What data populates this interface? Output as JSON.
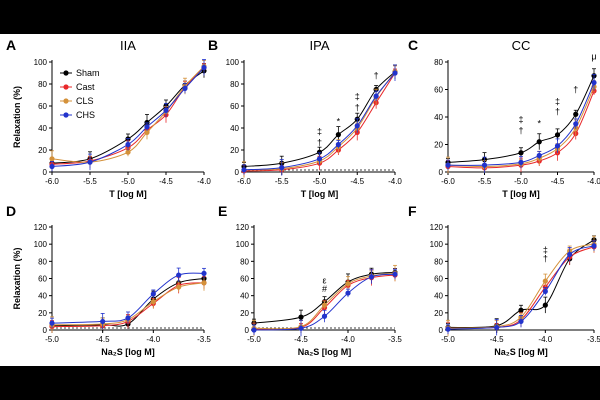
{
  "figure": {
    "y_axis_label": "Relaxation (%)",
    "legend": [
      "Sham",
      "Cast",
      "CLS",
      "CHS"
    ]
  },
  "chart_data": [
    {
      "type": "line",
      "panel": "A",
      "title": "IIA",
      "xlabel": "T [log M]",
      "ylabel": "Relaxation (%)",
      "x": [
        -6.0,
        -5.5,
        -5.0,
        -4.75,
        -4.5,
        -4.25,
        -4.0
      ],
      "xticks": [
        "-6.0",
        "-5.5",
        "-5.0",
        "-4.5",
        "-4.0"
      ],
      "xlim": [
        -6.0,
        -4.0
      ],
      "ylim": [
        0,
        100
      ],
      "yticks": [
        "0",
        "20",
        "40",
        "60",
        "80",
        "100"
      ],
      "baseline": false,
      "ylabel_shown": true,
      "legend_shown": true,
      "series": [
        {
          "name": "Sham",
          "color": "#000000",
          "values": [
            8,
            12,
            30,
            45,
            60,
            79,
            92
          ]
        },
        {
          "name": "Cast",
          "color": "#e8282a",
          "values": [
            7,
            10,
            22,
            38,
            52,
            77,
            95
          ]
        },
        {
          "name": "CLS",
          "color": "#d4913a",
          "values": [
            12,
            9,
            18,
            36,
            55,
            78,
            96
          ]
        },
        {
          "name": "CHS",
          "color": "#2233cc",
          "values": [
            5,
            9,
            25,
            41,
            56,
            76,
            95
          ]
        }
      ],
      "annotations": []
    },
    {
      "type": "line",
      "panel": "B",
      "title": "IPA",
      "xlabel": "T [log M]",
      "ylabel": "",
      "x": [
        -6.0,
        -5.5,
        -5.0,
        -4.75,
        -4.5,
        -4.25,
        -4.0
      ],
      "xticks": [
        "-6.0",
        "-5.5",
        "-5.0",
        "-4.5",
        "-4.0"
      ],
      "xlim": [
        -6.0,
        -4.0
      ],
      "ylim": [
        0,
        100
      ],
      "yticks": [
        "0",
        "20",
        "40",
        "60",
        "80",
        "100"
      ],
      "baseline": true,
      "ylabel_shown": false,
      "legend_shown": false,
      "series": [
        {
          "name": "Sham",
          "color": "#000000",
          "values": [
            5,
            8,
            18,
            34,
            48,
            75,
            91
          ]
        },
        {
          "name": "Cast",
          "color": "#e8282a",
          "values": [
            1,
            2,
            8,
            20,
            36,
            63,
            90
          ]
        },
        {
          "name": "CLS",
          "color": "#d4913a",
          "values": [
            2,
            3,
            10,
            23,
            40,
            68,
            91
          ]
        },
        {
          "name": "CHS",
          "color": "#2233cc",
          "values": [
            2,
            4,
            12,
            25,
            42,
            69,
            90
          ]
        }
      ],
      "annotations": [
        {
          "x": -5.0,
          "y": 24,
          "text": "†"
        },
        {
          "x": -5.0,
          "y": 34,
          "text": "‡"
        },
        {
          "x": -4.75,
          "y": 43,
          "text": "*"
        },
        {
          "x": -4.5,
          "y": 56,
          "text": "†"
        },
        {
          "x": -4.5,
          "y": 66,
          "text": "‡"
        },
        {
          "x": -4.25,
          "y": 85,
          "text": "†"
        }
      ]
    },
    {
      "type": "line",
      "panel": "C",
      "title": "CC",
      "xlabel": "T [log M]",
      "ylabel": "",
      "x": [
        -6.0,
        -5.5,
        -5.0,
        -4.75,
        -4.5,
        -4.25,
        -4.0
      ],
      "xticks": [
        "-6.0",
        "-5.5",
        "-5.0",
        "-4.5",
        "-4.0"
      ],
      "xlim": [
        -6.0,
        -4.0
      ],
      "ylim": [
        0,
        80
      ],
      "yticks": [
        "0",
        "20",
        "40",
        "60",
        "80"
      ],
      "baseline": false,
      "ylabel_shown": false,
      "legend_shown": false,
      "series": [
        {
          "name": "Sham",
          "color": "#000000",
          "values": [
            7,
            9,
            14,
            22,
            27,
            42,
            70
          ]
        },
        {
          "name": "Cast",
          "color": "#e8282a",
          "values": [
            4,
            3,
            5,
            8,
            14,
            28,
            59
          ]
        },
        {
          "name": "CLS",
          "color": "#d4913a",
          "values": [
            5,
            4,
            6,
            10,
            17,
            32,
            62
          ]
        },
        {
          "name": "CHS",
          "color": "#2233cc",
          "values": [
            5,
            5,
            7,
            12,
            19,
            35,
            65
          ]
        }
      ],
      "annotations": [
        {
          "x": -5.0,
          "y": 28,
          "text": "†"
        },
        {
          "x": -5.0,
          "y": 36,
          "text": "‡"
        },
        {
          "x": -4.75,
          "y": 33,
          "text": "*"
        },
        {
          "x": -4.5,
          "y": 42,
          "text": "†"
        },
        {
          "x": -4.5,
          "y": 49,
          "text": "‡"
        },
        {
          "x": -4.25,
          "y": 58,
          "text": "†"
        },
        {
          "x": -4.0,
          "y": 82,
          "text": "μ"
        }
      ]
    },
    {
      "type": "line",
      "panel": "D",
      "title": "",
      "xlabel": "Na₂S [log M]",
      "ylabel": "Relaxation (%)",
      "x": [
        -5.0,
        -4.5,
        -4.25,
        -4.0,
        -3.75,
        -3.5
      ],
      "xticks": [
        "-5.0",
        "-4.5",
        "-4.0",
        "-3.5"
      ],
      "xlim": [
        -5.0,
        -3.5
      ],
      "ylim": [
        0,
        120
      ],
      "yticks": [
        "0",
        "20",
        "40",
        "60",
        "80",
        "100",
        "120"
      ],
      "baseline": true,
      "ylabel_shown": true,
      "legend_shown": false,
      "series": [
        {
          "name": "Sham",
          "color": "#000000",
          "values": [
            5,
            6,
            7,
            36,
            55,
            60
          ]
        },
        {
          "name": "Cast",
          "color": "#e8282a",
          "values": [
            4,
            5,
            10,
            31,
            52,
            55
          ]
        },
        {
          "name": "CLS",
          "color": "#d4913a",
          "values": [
            6,
            7,
            12,
            33,
            50,
            55
          ]
        },
        {
          "name": "CHS",
          "color": "#2233cc",
          "values": [
            8,
            10,
            14,
            42,
            64,
            66
          ]
        }
      ],
      "annotations": []
    },
    {
      "type": "line",
      "panel": "E",
      "title": "",
      "xlabel": "Na₂S [log M]",
      "ylabel": "",
      "x": [
        -5.0,
        -4.5,
        -4.25,
        -4.0,
        -3.75,
        -3.5
      ],
      "xticks": [
        "-5.0",
        "-4.5",
        "-4.0",
        "-3.5"
      ],
      "xlim": [
        -5.0,
        -3.5
      ],
      "ylim": [
        0,
        120
      ],
      "yticks": [
        "0",
        "20",
        "40",
        "60",
        "80",
        "100",
        "120"
      ],
      "baseline": true,
      "ylabel_shown": false,
      "legend_shown": false,
      "series": [
        {
          "name": "Sham",
          "color": "#000000",
          "values": [
            8,
            15,
            33,
            56,
            65,
            67
          ]
        },
        {
          "name": "Cast",
          "color": "#e8282a",
          "values": [
            1,
            3,
            26,
            52,
            61,
            64
          ]
        },
        {
          "name": "CLS",
          "color": "#d4913a",
          "values": [
            2,
            4,
            29,
            54,
            63,
            66
          ]
        },
        {
          "name": "CHS",
          "color": "#2233cc",
          "values": [
            0,
            2,
            16,
            43,
            62,
            65
          ]
        }
      ],
      "annotations": [
        {
          "x": -4.25,
          "y": 44,
          "text": "#"
        },
        {
          "x": -4.25,
          "y": 54,
          "text": "ε"
        }
      ]
    },
    {
      "type": "line",
      "panel": "F",
      "title": "",
      "xlabel": "Na₂S [log M]",
      "ylabel": "",
      "x": [
        -5.0,
        -4.5,
        -4.25,
        -4.0,
        -3.75,
        -3.5
      ],
      "xticks": [
        "-5.0",
        "-4.5",
        "-4.0",
        "-3.5"
      ],
      "xlim": [
        -5.0,
        -3.5
      ],
      "ylim": [
        0,
        120
      ],
      "yticks": [
        "0",
        "20",
        "40",
        "60",
        "80",
        "100",
        "120"
      ],
      "baseline": false,
      "ylabel_shown": false,
      "legend_shown": false,
      "series": [
        {
          "name": "Sham",
          "color": "#000000",
          "values": [
            3,
            5,
            23,
            29,
            83,
            105
          ]
        },
        {
          "name": "Cast",
          "color": "#e8282a",
          "values": [
            2,
            3,
            12,
            50,
            85,
            97
          ]
        },
        {
          "name": "CLS",
          "color": "#d4913a",
          "values": [
            2,
            4,
            15,
            57,
            92,
            100
          ]
        },
        {
          "name": "CHS",
          "color": "#2233cc",
          "values": [
            1,
            3,
            10,
            45,
            88,
            98
          ]
        }
      ],
      "annotations": [
        {
          "x": -4.0,
          "y": 80,
          "text": "†"
        },
        {
          "x": -4.0,
          "y": 90,
          "text": "‡"
        }
      ]
    }
  ]
}
